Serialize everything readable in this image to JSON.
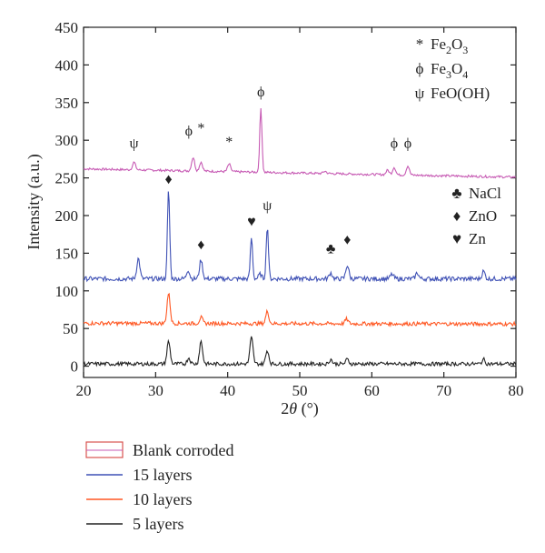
{
  "chart_data": {
    "type": "line",
    "xlabel_pre": "2",
    "xlabel_theta": "θ",
    "xlabel_post": " (°)",
    "ylabel": "Intensity (a.u.)",
    "xlim": [
      20,
      80
    ],
    "ylim": [
      -15,
      450
    ],
    "xticks": [
      20,
      30,
      40,
      50,
      60,
      70,
      80
    ],
    "yticks": [
      0,
      50,
      100,
      150,
      200,
      250,
      300,
      350,
      400,
      450
    ],
    "grid": false,
    "legend_position": "bottom-left (below plot)",
    "legend": [
      {
        "name": "Blank corroded",
        "color": "#d9534f",
        "style": "box"
      },
      {
        "name": "15 layers",
        "color": "#3f51b5",
        "style": "line"
      },
      {
        "name": "10 layers",
        "color": "#ff5722",
        "style": "line"
      },
      {
        "name": "5 layers",
        "color": "#222222",
        "style": "line"
      }
    ],
    "phase_legend_top": [
      {
        "symbol": "*",
        "main": "Fe",
        "sub1": "2",
        "mid": "O",
        "sub2": "3"
      },
      {
        "symbol": "ϕ",
        "main": "Fe",
        "sub1": "3",
        "mid": "O",
        "sub2": "4"
      },
      {
        "symbol": "ψ",
        "main": "FeO(OH)",
        "sub1": "",
        "mid": "",
        "sub2": ""
      }
    ],
    "phase_legend_mid": [
      {
        "symbol": "♣",
        "label": "NaCl"
      },
      {
        "symbol": "♦",
        "label": "ZnO"
      },
      {
        "symbol": "♥",
        "label": "Zn"
      }
    ],
    "series": [
      {
        "name": "Blank corroded",
        "color": "#c75bb4",
        "baseline": 262,
        "end_baseline": 251,
        "noise": 1.5,
        "peaks": [
          [
            27.0,
            10
          ],
          [
            35.2,
            18
          ],
          [
            36.3,
            12
          ],
          [
            40.2,
            10
          ],
          [
            44.6,
            85
          ],
          [
            53.5,
            3
          ],
          [
            62.2,
            6
          ],
          [
            63.1,
            10
          ],
          [
            65.0,
            12
          ]
        ]
      },
      {
        "name": "15 layers",
        "color": "#3f51b5",
        "baseline": 116,
        "end_baseline": 116,
        "noise": 3,
        "peaks": [
          [
            27.6,
            27
          ],
          [
            31.8,
            118
          ],
          [
            34.5,
            12
          ],
          [
            36.3,
            25
          ],
          [
            43.3,
            55
          ],
          [
            44.5,
            6
          ],
          [
            45.5,
            70
          ],
          [
            54.3,
            8
          ],
          [
            56.6,
            18
          ],
          [
            62.8,
            6
          ],
          [
            66.3,
            8
          ],
          [
            75.5,
            10
          ]
        ]
      },
      {
        "name": "10 layers",
        "color": "#ff5722",
        "baseline": 57,
        "end_baseline": 56,
        "noise": 2.5,
        "peaks": [
          [
            31.8,
            40
          ],
          [
            36.3,
            8
          ],
          [
            45.5,
            16
          ],
          [
            56.5,
            6
          ]
        ]
      },
      {
        "name": "5 layers",
        "color": "#222222",
        "baseline": 3,
        "end_baseline": 3,
        "noise": 2.5,
        "peaks": [
          [
            31.8,
            30
          ],
          [
            34.6,
            8
          ],
          [
            36.3,
            30
          ],
          [
            43.3,
            35
          ],
          [
            45.5,
            18
          ],
          [
            54.3,
            6
          ],
          [
            56.6,
            6
          ],
          [
            75.5,
            6
          ]
        ]
      }
    ],
    "annotations": [
      {
        "text": "ψ",
        "x": 27.0,
        "y": 290
      },
      {
        "text": "ϕ",
        "x": 34.6,
        "y": 306
      },
      {
        "text": "*",
        "x": 36.3,
        "y": 310
      },
      {
        "text": "*",
        "x": 40.2,
        "y": 292
      },
      {
        "text": "ϕ",
        "x": 44.6,
        "y": 358
      },
      {
        "text": "ϕ",
        "x": 63.1,
        "y": 290
      },
      {
        "text": "ϕ",
        "x": 65.0,
        "y": 290
      },
      {
        "text": "♦",
        "x": 31.8,
        "y": 242
      },
      {
        "text": "♦",
        "x": 36.3,
        "y": 155
      },
      {
        "text": "♥",
        "x": 43.3,
        "y": 186
      },
      {
        "text": "ψ",
        "x": 45.5,
        "y": 207
      },
      {
        "text": "♣",
        "x": 54.3,
        "y": 150
      },
      {
        "text": "♦",
        "x": 56.6,
        "y": 162
      }
    ]
  }
}
